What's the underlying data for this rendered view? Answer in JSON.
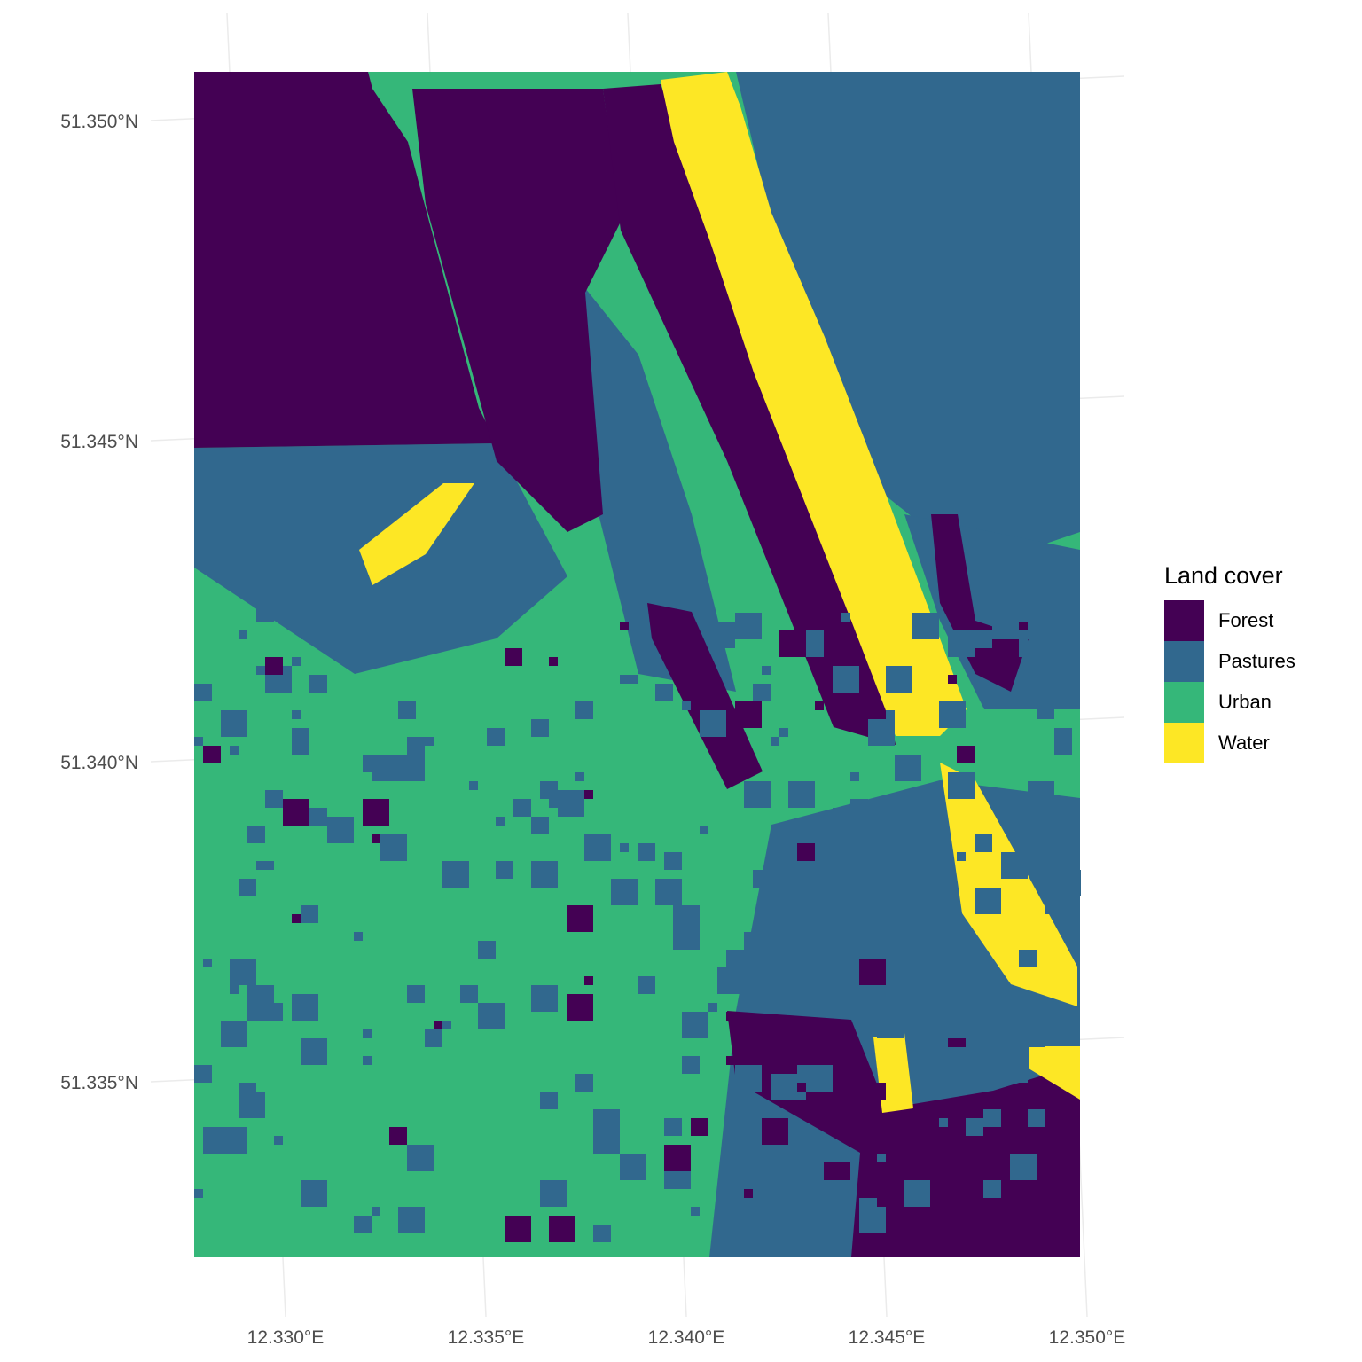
{
  "map": {
    "type": "raster",
    "legend": {
      "title": "Land cover",
      "placement": "right",
      "items": [
        {
          "label": "Forest",
          "color": "#440154"
        },
        {
          "label": "Pastures",
          "color": "#31688e"
        },
        {
          "label": "Urban",
          "color": "#35b779"
        },
        {
          "label": "Water",
          "color": "#fde725"
        }
      ]
    },
    "lat_labels": [
      "51.350°N",
      "51.345°N",
      "51.340°N",
      "51.335°N"
    ],
    "lon_labels": [
      "12.330°E",
      "12.335°E",
      "12.340°E",
      "12.345°E",
      "12.350°E"
    ],
    "grid": true
  }
}
